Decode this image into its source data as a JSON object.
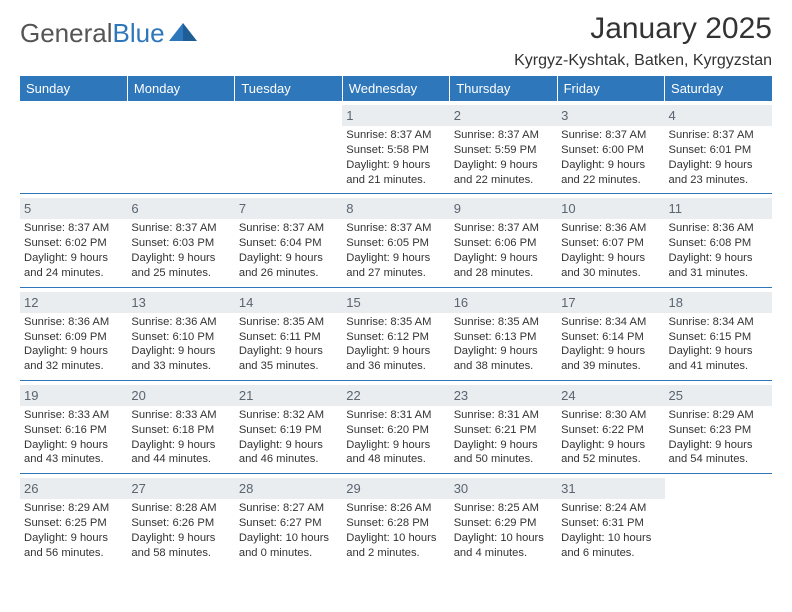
{
  "logo": {
    "word1": "General",
    "word2": "Blue"
  },
  "title": "January 2025",
  "location": "Kyrgyz-Kyshtak, Batken, Kyrgyzstan",
  "colors": {
    "accent": "#2f77bb",
    "headerText": "#ffffff",
    "dayBg": "#e9edf0",
    "text": "#333333"
  },
  "weekdays": [
    "Sunday",
    "Monday",
    "Tuesday",
    "Wednesday",
    "Thursday",
    "Friday",
    "Saturday"
  ],
  "weeks": [
    [
      {
        "n": "",
        "sr": "",
        "ss": "",
        "dl": ""
      },
      {
        "n": "",
        "sr": "",
        "ss": "",
        "dl": ""
      },
      {
        "n": "",
        "sr": "",
        "ss": "",
        "dl": ""
      },
      {
        "n": "1",
        "sr": "Sunrise: 8:37 AM",
        "ss": "Sunset: 5:58 PM",
        "dl": "Daylight: 9 hours and 21 minutes."
      },
      {
        "n": "2",
        "sr": "Sunrise: 8:37 AM",
        "ss": "Sunset: 5:59 PM",
        "dl": "Daylight: 9 hours and 22 minutes."
      },
      {
        "n": "3",
        "sr": "Sunrise: 8:37 AM",
        "ss": "Sunset: 6:00 PM",
        "dl": "Daylight: 9 hours and 22 minutes."
      },
      {
        "n": "4",
        "sr": "Sunrise: 8:37 AM",
        "ss": "Sunset: 6:01 PM",
        "dl": "Daylight: 9 hours and 23 minutes."
      }
    ],
    [
      {
        "n": "5",
        "sr": "Sunrise: 8:37 AM",
        "ss": "Sunset: 6:02 PM",
        "dl": "Daylight: 9 hours and 24 minutes."
      },
      {
        "n": "6",
        "sr": "Sunrise: 8:37 AM",
        "ss": "Sunset: 6:03 PM",
        "dl": "Daylight: 9 hours and 25 minutes."
      },
      {
        "n": "7",
        "sr": "Sunrise: 8:37 AM",
        "ss": "Sunset: 6:04 PM",
        "dl": "Daylight: 9 hours and 26 minutes."
      },
      {
        "n": "8",
        "sr": "Sunrise: 8:37 AM",
        "ss": "Sunset: 6:05 PM",
        "dl": "Daylight: 9 hours and 27 minutes."
      },
      {
        "n": "9",
        "sr": "Sunrise: 8:37 AM",
        "ss": "Sunset: 6:06 PM",
        "dl": "Daylight: 9 hours and 28 minutes."
      },
      {
        "n": "10",
        "sr": "Sunrise: 8:36 AM",
        "ss": "Sunset: 6:07 PM",
        "dl": "Daylight: 9 hours and 30 minutes."
      },
      {
        "n": "11",
        "sr": "Sunrise: 8:36 AM",
        "ss": "Sunset: 6:08 PM",
        "dl": "Daylight: 9 hours and 31 minutes."
      }
    ],
    [
      {
        "n": "12",
        "sr": "Sunrise: 8:36 AM",
        "ss": "Sunset: 6:09 PM",
        "dl": "Daylight: 9 hours and 32 minutes."
      },
      {
        "n": "13",
        "sr": "Sunrise: 8:36 AM",
        "ss": "Sunset: 6:10 PM",
        "dl": "Daylight: 9 hours and 33 minutes."
      },
      {
        "n": "14",
        "sr": "Sunrise: 8:35 AM",
        "ss": "Sunset: 6:11 PM",
        "dl": "Daylight: 9 hours and 35 minutes."
      },
      {
        "n": "15",
        "sr": "Sunrise: 8:35 AM",
        "ss": "Sunset: 6:12 PM",
        "dl": "Daylight: 9 hours and 36 minutes."
      },
      {
        "n": "16",
        "sr": "Sunrise: 8:35 AM",
        "ss": "Sunset: 6:13 PM",
        "dl": "Daylight: 9 hours and 38 minutes."
      },
      {
        "n": "17",
        "sr": "Sunrise: 8:34 AM",
        "ss": "Sunset: 6:14 PM",
        "dl": "Daylight: 9 hours and 39 minutes."
      },
      {
        "n": "18",
        "sr": "Sunrise: 8:34 AM",
        "ss": "Sunset: 6:15 PM",
        "dl": "Daylight: 9 hours and 41 minutes."
      }
    ],
    [
      {
        "n": "19",
        "sr": "Sunrise: 8:33 AM",
        "ss": "Sunset: 6:16 PM",
        "dl": "Daylight: 9 hours and 43 minutes."
      },
      {
        "n": "20",
        "sr": "Sunrise: 8:33 AM",
        "ss": "Sunset: 6:18 PM",
        "dl": "Daylight: 9 hours and 44 minutes."
      },
      {
        "n": "21",
        "sr": "Sunrise: 8:32 AM",
        "ss": "Sunset: 6:19 PM",
        "dl": "Daylight: 9 hours and 46 minutes."
      },
      {
        "n": "22",
        "sr": "Sunrise: 8:31 AM",
        "ss": "Sunset: 6:20 PM",
        "dl": "Daylight: 9 hours and 48 minutes."
      },
      {
        "n": "23",
        "sr": "Sunrise: 8:31 AM",
        "ss": "Sunset: 6:21 PM",
        "dl": "Daylight: 9 hours and 50 minutes."
      },
      {
        "n": "24",
        "sr": "Sunrise: 8:30 AM",
        "ss": "Sunset: 6:22 PM",
        "dl": "Daylight: 9 hours and 52 minutes."
      },
      {
        "n": "25",
        "sr": "Sunrise: 8:29 AM",
        "ss": "Sunset: 6:23 PM",
        "dl": "Daylight: 9 hours and 54 minutes."
      }
    ],
    [
      {
        "n": "26",
        "sr": "Sunrise: 8:29 AM",
        "ss": "Sunset: 6:25 PM",
        "dl": "Daylight: 9 hours and 56 minutes."
      },
      {
        "n": "27",
        "sr": "Sunrise: 8:28 AM",
        "ss": "Sunset: 6:26 PM",
        "dl": "Daylight: 9 hours and 58 minutes."
      },
      {
        "n": "28",
        "sr": "Sunrise: 8:27 AM",
        "ss": "Sunset: 6:27 PM",
        "dl": "Daylight: 10 hours and 0 minutes."
      },
      {
        "n": "29",
        "sr": "Sunrise: 8:26 AM",
        "ss": "Sunset: 6:28 PM",
        "dl": "Daylight: 10 hours and 2 minutes."
      },
      {
        "n": "30",
        "sr": "Sunrise: 8:25 AM",
        "ss": "Sunset: 6:29 PM",
        "dl": "Daylight: 10 hours and 4 minutes."
      },
      {
        "n": "31",
        "sr": "Sunrise: 8:24 AM",
        "ss": "Sunset: 6:31 PM",
        "dl": "Daylight: 10 hours and 6 minutes."
      },
      {
        "n": "",
        "sr": "",
        "ss": "",
        "dl": ""
      }
    ]
  ]
}
